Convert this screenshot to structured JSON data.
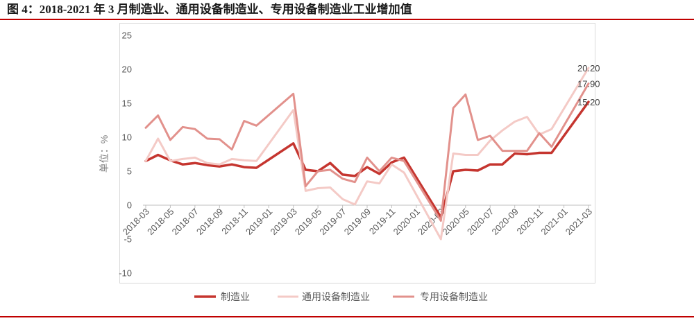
{
  "title": "图 4：2018-2021 年 3 月制造业、通用设备制造业、专用设备制造业工业增加值",
  "colors": {
    "rule": "#C00000",
    "frame": "#D9D9D9",
    "axis": "#BFBFBF"
  },
  "chart_data": {
    "type": "line",
    "x_tick_labels": [
      "2018-03",
      "2018-05",
      "2018-07",
      "2018-09",
      "2018-11",
      "2019-01",
      "2019-03",
      "2019-05",
      "2019-07",
      "2019-09",
      "2019-11",
      "2020-01",
      "2020-03",
      "2020-05",
      "2020-07",
      "2020-09",
      "2020-11",
      "2021-01",
      "2021-03"
    ],
    "ylabel": "单位：%",
    "ylim": [
      -10,
      25
    ],
    "y_ticks": [
      25,
      20,
      15,
      10,
      5,
      0,
      -5,
      -10
    ],
    "grid": false,
    "legend_position": "bottom",
    "series": [
      {
        "name": "制造业",
        "color": "#C5352F",
        "end_label": "15.20",
        "values": [
          6.5,
          7.4,
          6.6,
          6.0,
          6.2,
          5.9,
          5.7,
          6.0,
          5.6,
          5.5,
          null,
          null,
          9.1,
          5.2,
          5.0,
          6.2,
          4.5,
          4.3,
          5.6,
          4.6,
          6.3,
          7.0,
          null,
          null,
          -1.8,
          5.0,
          5.2,
          5.1,
          6.0,
          6.0,
          7.6,
          7.5,
          7.7,
          7.7,
          null,
          null,
          15.2
        ]
      },
      {
        "name": "通用设备制造业",
        "color": "#F4CAC6",
        "end_label": "20.20",
        "values": [
          6.5,
          9.8,
          6.5,
          6.8,
          7.0,
          6.2,
          6.0,
          6.8,
          6.6,
          6.5,
          null,
          null,
          14.0,
          2.1,
          2.5,
          2.6,
          0.9,
          0.1,
          3.5,
          3.2,
          6.0,
          4.8,
          null,
          null,
          -5.0,
          7.6,
          7.4,
          7.4,
          9.5,
          11.0,
          12.3,
          13.0,
          10.4,
          11.2,
          null,
          null,
          20.2
        ]
      },
      {
        "name": "专用设备制造业",
        "color": "#E2918C",
        "end_label": "17.90",
        "values": [
          11.4,
          13.2,
          9.6,
          11.5,
          11.2,
          9.8,
          9.7,
          8.2,
          12.4,
          11.7,
          null,
          null,
          16.4,
          2.8,
          5.0,
          5.2,
          3.9,
          3.4,
          7.0,
          5.0,
          7.0,
          6.5,
          null,
          null,
          -2.3,
          14.3,
          16.3,
          9.6,
          10.2,
          8.0,
          8.0,
          8.0,
          10.6,
          8.6,
          null,
          null,
          17.9
        ]
      }
    ]
  }
}
